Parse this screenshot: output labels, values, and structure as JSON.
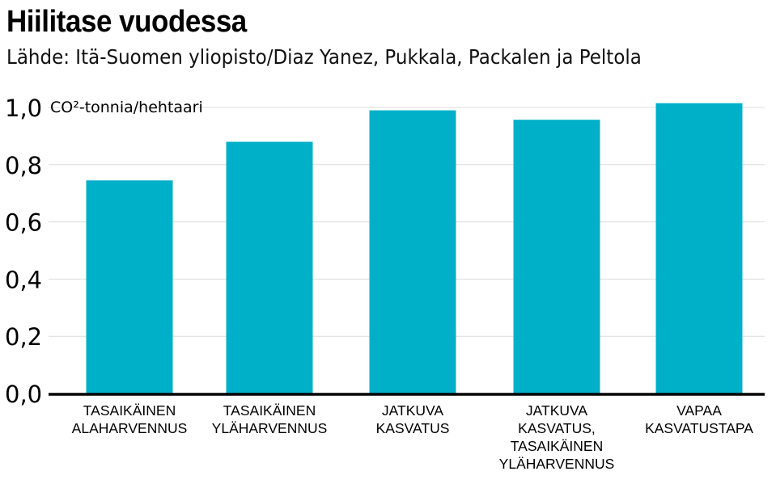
{
  "chart_data": {
    "type": "bar",
    "title": "Hiilitase vuodessa",
    "subtitle": "Lähde:  Itä-Suomen yliopisto/Diaz Yanez, Pukkala, Packalen ja Peltola",
    "ylabel": "CO²-tonnia/hehtaari",
    "xlabel": "",
    "ylim": [
      0,
      1.0
    ],
    "yticks": [
      0,
      0.2,
      0.4,
      0.6,
      0.8,
      1.0
    ],
    "ytick_labels": [
      "0,0",
      "0,2",
      "0,4",
      "0,6",
      "0,8",
      "1,0"
    ],
    "grid": true,
    "categories": [
      [
        "TASAIKÄINEN",
        "ALAHARVENNUS"
      ],
      [
        "TASAIKÄINEN",
        "YLÄHARVENNUS"
      ],
      [
        "JATKUVA",
        "KASVATUS"
      ],
      [
        "JATKUVA",
        "KASVATUS,",
        "TASAIKÄINEN",
        "YLÄHARVENNUS"
      ],
      [
        "VAPAA",
        "KASVATUSTAPA"
      ]
    ],
    "values": [
      0.745,
      0.88,
      0.99,
      0.957,
      1.015
    ],
    "bar_color": "#00b0c8"
  }
}
